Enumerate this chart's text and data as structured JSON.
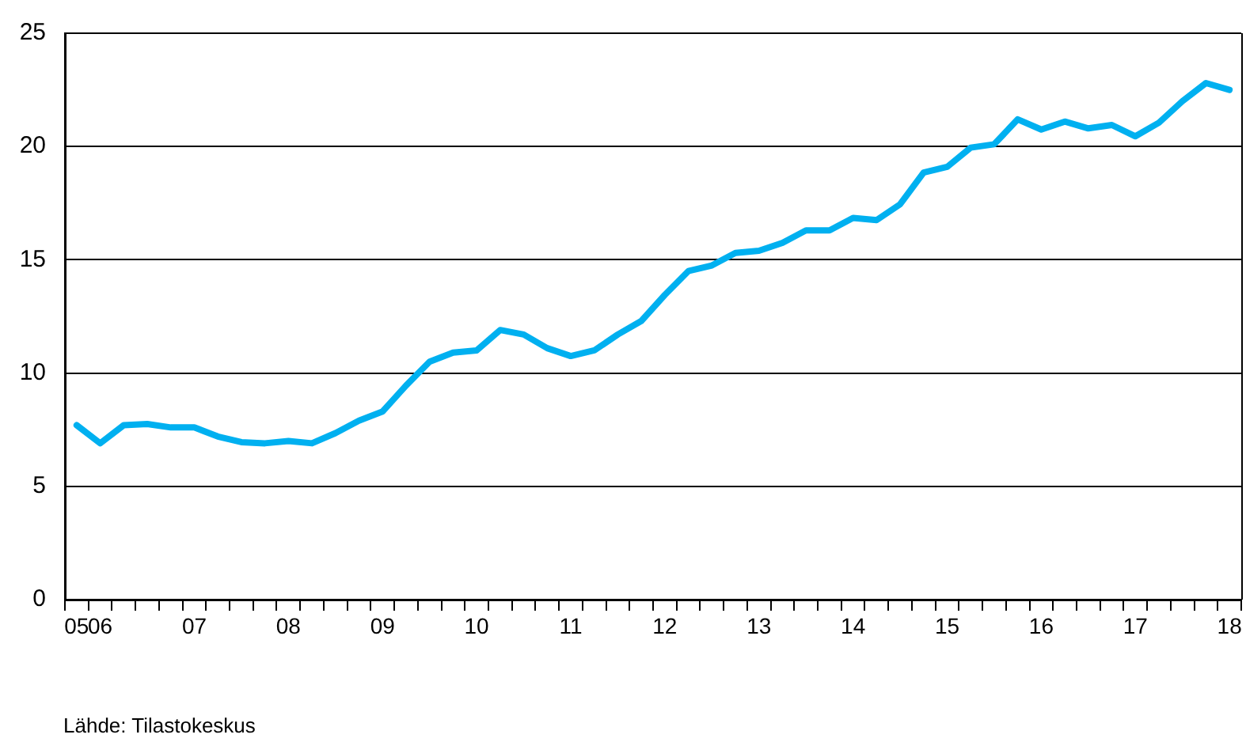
{
  "chart_data": {
    "type": "line",
    "annotations": [
      "Lähde: Tilastokeskus"
    ],
    "categories": [
      "05",
      "06",
      null,
      null,
      null,
      "07",
      null,
      null,
      null,
      "08",
      null,
      null,
      null,
      "09",
      null,
      null,
      null,
      "10",
      null,
      null,
      null,
      "11",
      null,
      null,
      null,
      "12",
      null,
      null,
      null,
      "13",
      null,
      null,
      null,
      "14",
      null,
      null,
      null,
      "15",
      null,
      null,
      null,
      "16",
      null,
      null,
      null,
      "17",
      null,
      null,
      null,
      "18"
    ],
    "series": [
      {
        "color": "#00b0f0",
        "values": [
          7.7,
          6.9,
          7.7,
          7.75,
          7.6,
          7.6,
          7.2,
          6.95,
          6.9,
          7.0,
          6.9,
          7.35,
          7.9,
          8.3,
          9.45,
          10.5,
          10.9,
          11.0,
          11.9,
          11.7,
          11.1,
          10.75,
          11.0,
          11.7,
          12.3,
          13.45,
          14.5,
          14.75,
          15.3,
          15.4,
          15.75,
          16.3,
          16.3,
          16.85,
          16.75,
          17.45,
          18.85,
          19.1,
          19.95,
          20.1,
          21.2,
          20.75,
          21.1,
          20.8,
          20.95,
          20.45,
          21.05,
          22.0,
          22.8,
          22.5
        ]
      }
    ],
    "ylim": [
      0,
      25
    ],
    "yticks": [
      0,
      5,
      10,
      15,
      20,
      25
    ],
    "grid": "y",
    "legend": false,
    "marker": "none",
    "line_style": "solid"
  }
}
